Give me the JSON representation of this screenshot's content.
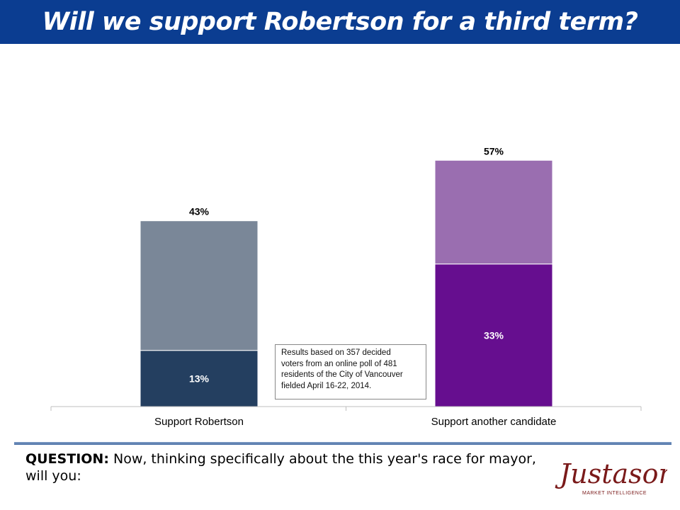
{
  "title": "Will we support Robertson for a third term?",
  "chart_data": {
    "type": "bar",
    "stacked": true,
    "categories": [
      "Support Robertson",
      "Support another candidate"
    ],
    "totals": [
      43,
      57
    ],
    "total_labels": [
      "43%",
      "57%"
    ],
    "segments": [
      {
        "values": [
          13,
          33
        ],
        "labels": [
          "13%",
          "33%"
        ],
        "colors": [
          "#243f60",
          "#660e8f"
        ]
      },
      {
        "values": [
          30,
          24
        ],
        "labels": [
          "",
          ""
        ],
        "colors": [
          "#7a8798",
          "#9a6eb0"
        ]
      }
    ],
    "ylim": [
      0,
      60
    ],
    "grid": false,
    "legend": false
  },
  "note": {
    "lines": [
      "Results based on 357 decided",
      "voters from an online poll  of 481",
      "residents of the City of Vancouver",
      "fielded April 16-22, 2014."
    ]
  },
  "question": {
    "label": "QUESTION:",
    "text": " Now, thinking specifically about the this year's race for mayor, will you:"
  },
  "logo": {
    "name": "Justason",
    "tagline": "MARKET INTELLIGENCE",
    "color": "#7a1a1a"
  }
}
